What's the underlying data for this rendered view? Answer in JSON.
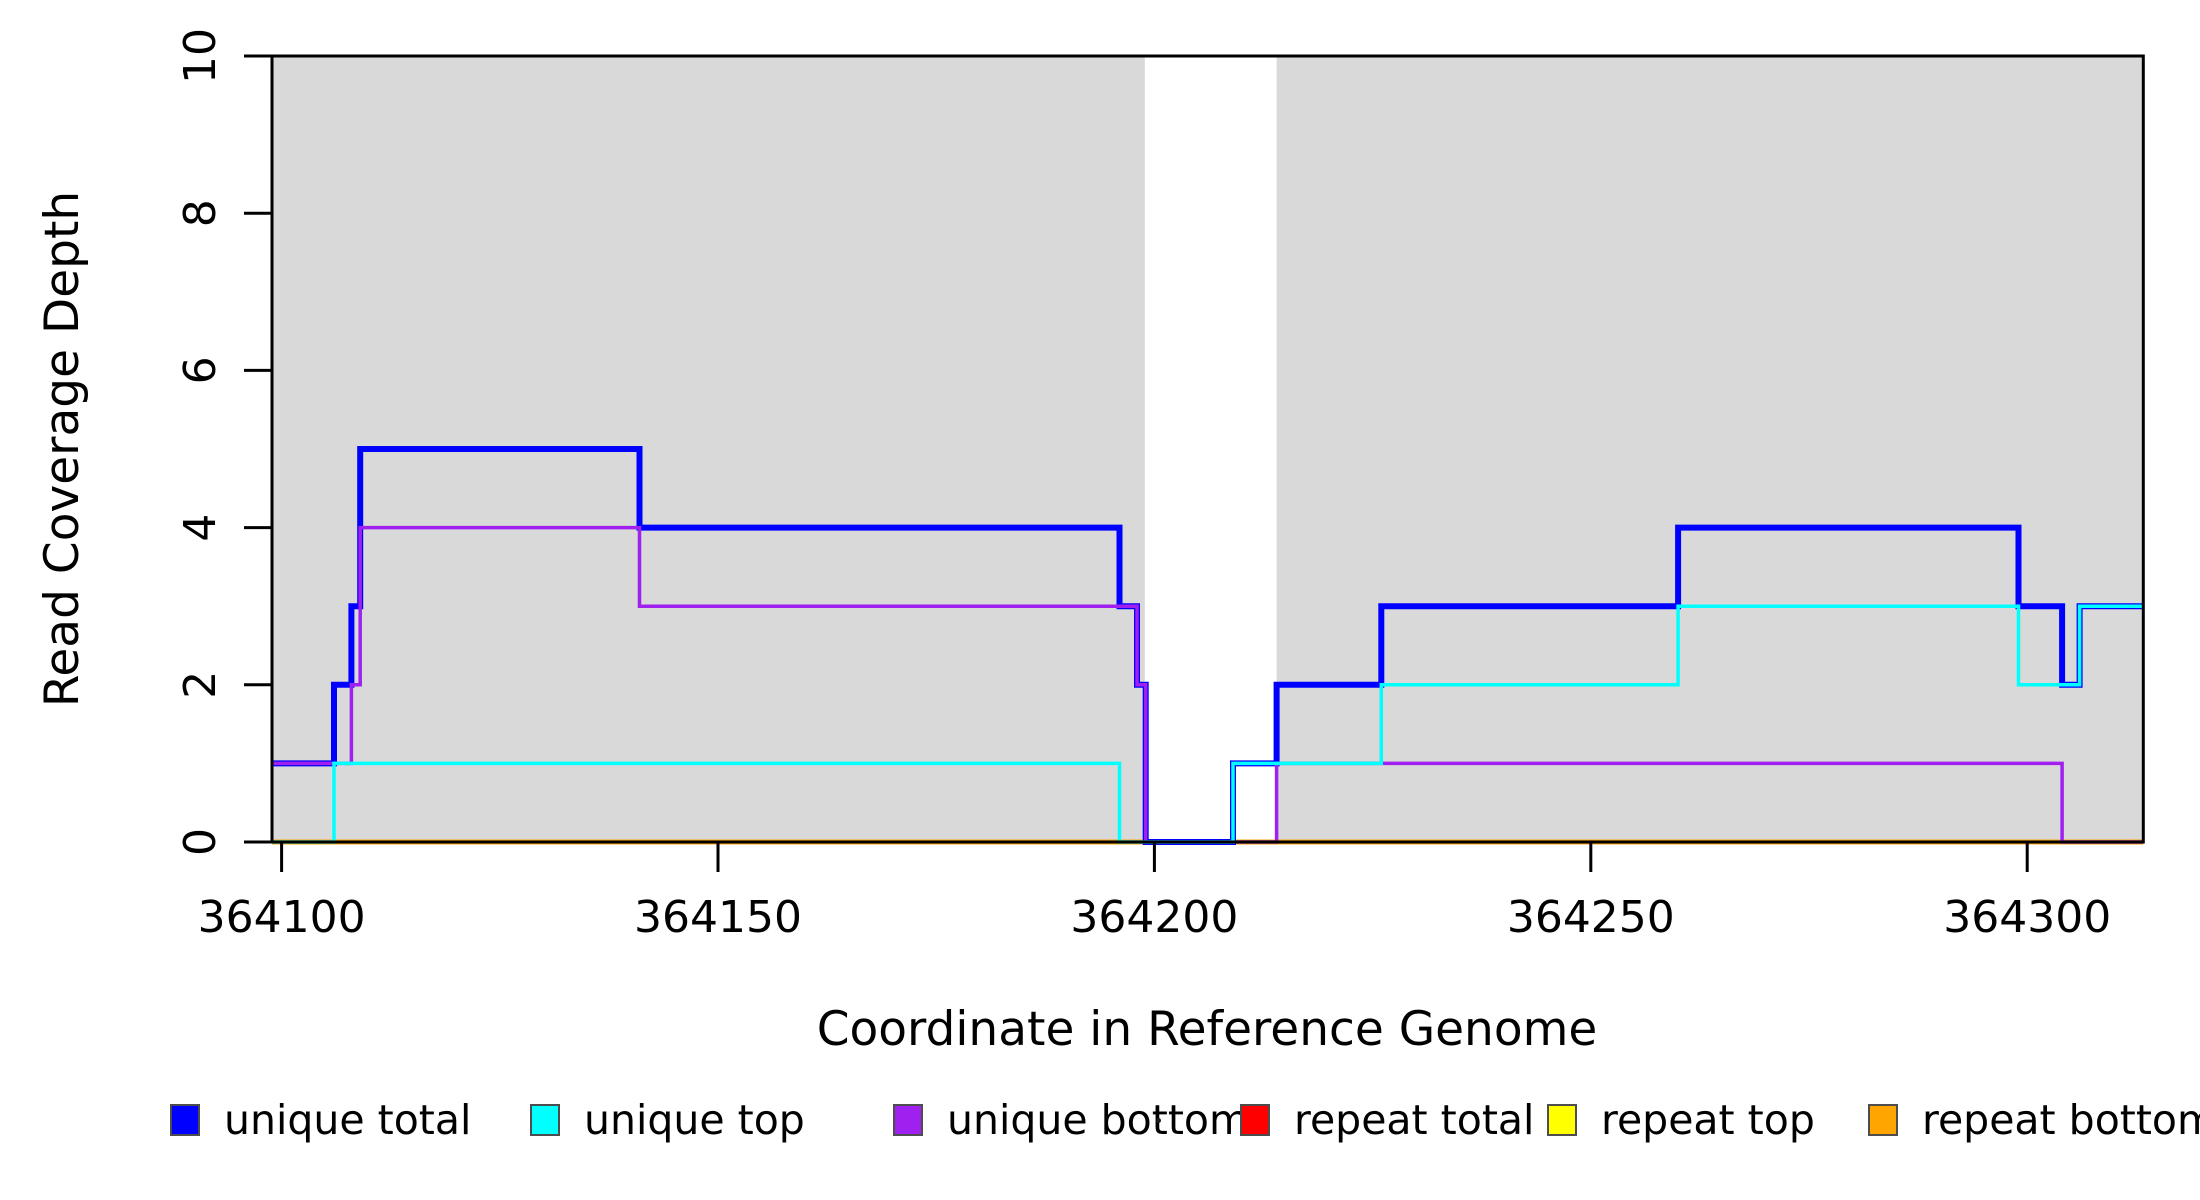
{
  "figure": {
    "background_color": "#ffffff",
    "shading_color": "#d9d9d9",
    "axis_color": "#000000"
  },
  "chart_data": {
    "type": "line",
    "subtype": "step-coverage",
    "title": "",
    "xlabel": "Coordinate in Reference Genome",
    "ylabel": "Read Coverage Depth",
    "xlim": [
      364098.9,
      364313.3
    ],
    "ylim": [
      0,
      10
    ],
    "x_ticks": [
      364100,
      364150,
      364200,
      364250,
      364300
    ],
    "y_ticks": [
      0,
      2,
      4,
      6,
      8,
      10
    ],
    "grid": false,
    "legend_position": "bottom",
    "shaded_regions": [
      {
        "x0": 364098.9,
        "x1": 364198.9,
        "color": "#d9d9d9"
      },
      {
        "x0": 364214.0,
        "x1": 364313.3,
        "color": "#d9d9d9"
      }
    ],
    "series": [
      {
        "name": "unique total",
        "color": "#0000ff",
        "lw": 6,
        "z": 4,
        "steps": [
          [
            364098.9,
            1
          ],
          [
            364106,
            2
          ],
          [
            364108,
            3
          ],
          [
            364109,
            5
          ],
          [
            364141,
            4
          ],
          [
            364196,
            3
          ],
          [
            364198,
            2
          ],
          [
            364199,
            0
          ],
          [
            364209,
            1
          ],
          [
            364214,
            2
          ],
          [
            364226,
            3
          ],
          [
            364260,
            4
          ],
          [
            364299,
            3
          ],
          [
            364304,
            2
          ],
          [
            364306,
            3
          ]
        ]
      },
      {
        "name": "unique top",
        "color": "#00ffff",
        "lw": 3.5,
        "z": 6,
        "steps": [
          [
            364098.9,
            0
          ],
          [
            364106,
            1
          ],
          [
            364196,
            0
          ],
          [
            364209,
            1
          ],
          [
            364226,
            2
          ],
          [
            364260,
            3
          ],
          [
            364299,
            2
          ],
          [
            364306,
            3
          ]
        ]
      },
      {
        "name": "unique bottom",
        "color": "#a020f0",
        "lw": 3.5,
        "z": 5,
        "steps": [
          [
            364098.9,
            1
          ],
          [
            364108,
            2
          ],
          [
            364109,
            4
          ],
          [
            364141,
            3
          ],
          [
            364198,
            2
          ],
          [
            364199,
            0
          ],
          [
            364214,
            1
          ],
          [
            364304,
            0
          ]
        ]
      },
      {
        "name": "repeat total",
        "color": "#ff0000",
        "lw": 2.5,
        "z": 2,
        "steps": [
          [
            364098.9,
            0
          ]
        ]
      },
      {
        "name": "repeat top",
        "color": "#ffff00",
        "lw": 2.5,
        "z": 1,
        "steps": [
          [
            364098.9,
            0
          ]
        ]
      },
      {
        "name": "repeat bottom",
        "color": "#ffa500",
        "lw": 5,
        "z": 3,
        "steps": [
          [
            364098.9,
            0
          ]
        ]
      }
    ],
    "legend": [
      {
        "label": "unique total",
        "color": "#0000ff"
      },
      {
        "label": "unique top",
        "color": "#00ffff"
      },
      {
        "label": "unique bottom",
        "color": "#a020f0"
      },
      {
        "label": "repeat total",
        "color": "#ff0000"
      },
      {
        "label": "repeat top",
        "color": "#ffff00"
      },
      {
        "label": "repeat bottom",
        "color": "#ffa500"
      }
    ]
  }
}
